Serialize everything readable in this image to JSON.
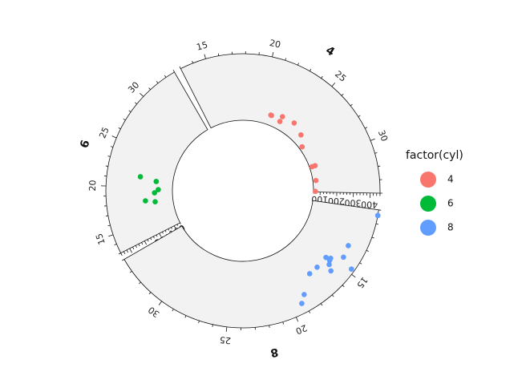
{
  "chart_data": {
    "type": "scatter",
    "layout": "circular-sectors",
    "x_variable": "mpg",
    "y_variable": "disp",
    "legend": {
      "title": "factor(cyl)",
      "placement": "right",
      "entries": [
        {
          "label": "4",
          "color": "#F8766D"
        },
        {
          "label": "6",
          "color": "#00BA38"
        },
        {
          "label": "8",
          "color": "#619CFF"
        }
      ]
    },
    "sectors": [
      {
        "label": "4",
        "color": "#F8766D",
        "xlim": [
          13,
          34
        ],
        "x_ticks": [
          15,
          20,
          25,
          30
        ],
        "ylim": [
          60,
          460
        ],
        "y_ticks": [
          100,
          200,
          300,
          400
        ],
        "points": [
          {
            "x": 22.8,
            "y": 108
          },
          {
            "x": 24.4,
            "y": 146.7
          },
          {
            "x": 22.8,
            "y": 140.8
          },
          {
            "x": 32.4,
            "y": 78.7
          },
          {
            "x": 30.4,
            "y": 75.7
          },
          {
            "x": 33.9,
            "y": 71.1
          },
          {
            "x": 21.5,
            "y": 120.1
          },
          {
            "x": 27.3,
            "y": 79
          },
          {
            "x": 26.0,
            "y": 120.3
          },
          {
            "x": 30.4,
            "y": 95.1
          },
          {
            "x": 21.4,
            "y": 121
          }
        ]
      },
      {
        "label": "6",
        "color": "#00BA38",
        "xlim": [
          13,
          34
        ],
        "x_ticks": [
          15,
          20,
          25,
          30
        ],
        "ylim": [
          60,
          460
        ],
        "y_ticks": [
          100,
          200
        ],
        "points": [
          {
            "x": 21.0,
            "y": 160
          },
          {
            "x": 21.0,
            "y": 160
          },
          {
            "x": 21.4,
            "y": 258
          },
          {
            "x": 18.1,
            "y": 225
          },
          {
            "x": 19.2,
            "y": 167.6
          },
          {
            "x": 17.8,
            "y": 167.6
          },
          {
            "x": 19.7,
            "y": 145
          }
        ]
      },
      {
        "label": "8",
        "color": "#619CFF",
        "xlim": [
          10,
          34
        ],
        "x_ticks": [
          15,
          20,
          25,
          30
        ],
        "ylim": [
          60,
          460
        ],
        "y_ticks": [],
        "points": [
          {
            "x": 18.7,
            "y": 360
          },
          {
            "x": 14.3,
            "y": 360
          },
          {
            "x": 16.4,
            "y": 275.8
          },
          {
            "x": 17.3,
            "y": 275.8
          },
          {
            "x": 15.2,
            "y": 275.8
          },
          {
            "x": 10.4,
            "y": 472
          },
          {
            "x": 10.4,
            "y": 460
          },
          {
            "x": 14.7,
            "y": 440
          },
          {
            "x": 15.5,
            "y": 318
          },
          {
            "x": 15.2,
            "y": 304
          },
          {
            "x": 13.3,
            "y": 350
          },
          {
            "x": 19.2,
            "y": 400
          },
          {
            "x": 15.8,
            "y": 351
          },
          {
            "x": 15.0,
            "y": 301
          }
        ]
      }
    ]
  }
}
